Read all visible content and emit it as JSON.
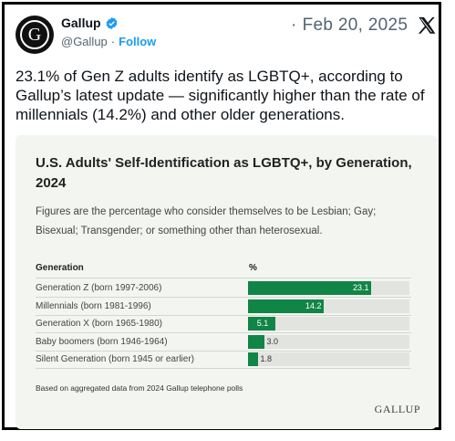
{
  "post": {
    "author_name": "Gallup",
    "handle": "@Gallup",
    "separator": "·",
    "follow_label": "Follow",
    "date_separator": "·",
    "date": "Feb 20, 2025",
    "avatar_letter": "G",
    "text": "23.1% of Gen Z adults identify as LGBTQ+, according to Gallup’s latest update — significantly higher than the rate of millennials (14.2%) and other older generations."
  },
  "card": {
    "title": "U.S. Adults' Self-Identification as LGBTQ+, by Generation, 2024",
    "subtitle": "Figures are the percentage who consider themselves to be Lesbian; Gay; Bisexual; Transgender; or something other than heterosexual.",
    "footnote": "Based on aggregated data from 2024 Gallup telephone polls",
    "brand": "GALLUP"
  },
  "colors": {
    "bar": "#118546",
    "track": "#e2e4e0",
    "verified": "#1d9bf0"
  },
  "chart_data": {
    "type": "bar",
    "orientation": "horizontal",
    "category_header": "Generation",
    "value_header": "%",
    "categories": [
      "Generation Z (born 1997-2006)",
      "Millennials (born 1981-1996)",
      "Generation X (born 1965-1980)",
      "Baby boomers (born 1946-1964)",
      "Silent Generation (born 1945 or earlier)"
    ],
    "values": [
      23.1,
      14.2,
      5.1,
      3.0,
      1.8
    ],
    "value_labels": [
      "23.1",
      "14.2",
      "5.1",
      "3.0",
      "1.8"
    ],
    "xlim": [
      0,
      30
    ]
  }
}
